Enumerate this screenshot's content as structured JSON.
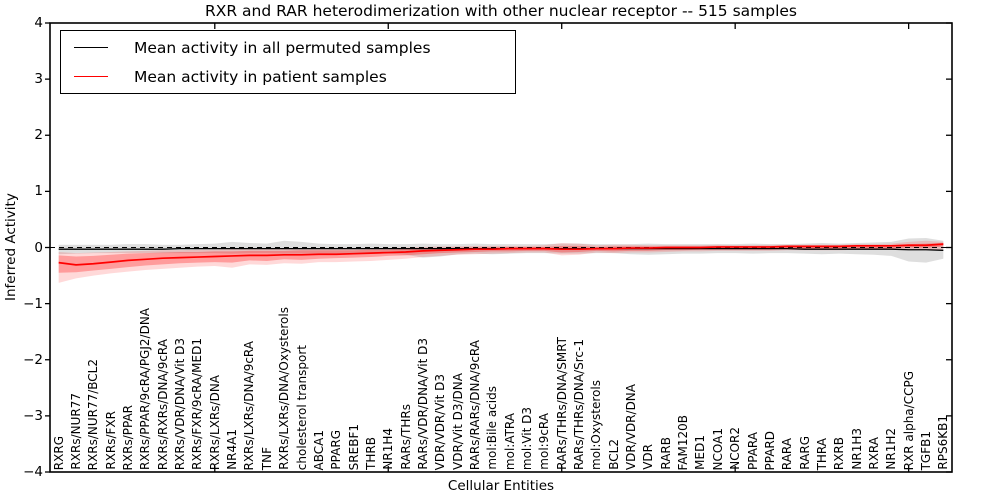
{
  "chart_data": {
    "type": "line",
    "title": "RXR and RAR heterodimerization with other nuclear receptor -- 515 samples",
    "xlabel": "Cellular Entities",
    "ylabel": "Inferred Activity",
    "ylim": [
      -4,
      4
    ],
    "yticks": [
      4,
      3,
      2,
      1,
      0,
      -1,
      -2,
      -3,
      -4
    ],
    "ytick_labels": [
      "4",
      "3",
      "2",
      "1",
      "0",
      "−1",
      "−2",
      "−3",
      "−4"
    ],
    "xtick_values": [
      10,
      20,
      30,
      40,
      50
    ],
    "grid": false,
    "legend_position": "upper left",
    "zero_line": {
      "style": "dashed",
      "color": "#000000",
      "y": 0
    },
    "categories": [
      "RXRG",
      "RXRs/NUR77",
      "RXRs/NUR77/BCL2",
      "RXRs/FXR",
      "RXRs/PPAR",
      "RXRs/PPAR/9cRA/PGJ2/DNA",
      "RXRs/RXRs/DNA/9cRA",
      "RXRs/VDR/DNA/Vit D3",
      "RXRs/FXR/9cRA/MED1",
      "RXRs/LXRs/DNA",
      "NR4A1",
      "RXRs/LXRs/DNA/9cRA",
      "TNF",
      "RXRs/LXRs/DNA/Oxysterols",
      "cholesterol transport",
      "ABCA1",
      "PPARG",
      "SREBF1",
      "THRB",
      "NR1H4",
      "RARs/THRs",
      "RARs/VDR/DNA/Vit D3",
      "VDR/VDR/Vit D3",
      "VDR/Vit D3/DNA",
      "RARs/RARs/DNA/9cRA",
      "mol:Bile acids",
      "mol:ATRA",
      "mol:Vit D3",
      "mol:9cRA",
      "RARs/THRs/DNA/SMRT",
      "RARs/THRs/DNA/Src-1",
      "mol:Oxysterols",
      "BCL2",
      "VDR/VDR/DNA",
      "VDR",
      "RARB",
      "FAM120B",
      "MED1",
      "NCOA1",
      "NCOR2",
      "PPARA",
      "PPARD",
      "RARA",
      "RARG",
      "THRA",
      "RXRB",
      "NR1H3",
      "RXRA",
      "NR1H2",
      "RXR alpha/CCPG",
      "TGFB1",
      "RPS6KB1"
    ],
    "series": [
      {
        "name": "Mean activity in all permuted samples",
        "color": "#000000",
        "linewidth": 1.3,
        "values": [
          -0.03,
          -0.03,
          -0.03,
          -0.03,
          -0.03,
          -0.03,
          -0.03,
          -0.02,
          -0.02,
          -0.02,
          -0.02,
          -0.02,
          -0.02,
          -0.02,
          -0.02,
          -0.02,
          -0.02,
          -0.02,
          -0.02,
          -0.02,
          -0.02,
          -0.02,
          -0.02,
          -0.02,
          -0.02,
          -0.02,
          -0.02,
          -0.02,
          -0.02,
          -0.02,
          -0.02,
          -0.02,
          -0.02,
          -0.02,
          -0.02,
          -0.02,
          -0.02,
          -0.02,
          -0.02,
          -0.02,
          -0.02,
          -0.02,
          -0.02,
          -0.03,
          -0.03,
          -0.03,
          -0.03,
          -0.03,
          -0.03,
          -0.04,
          -0.04,
          -0.05
        ]
      },
      {
        "name": "Mean activity in patient samples",
        "color": "#ff0000",
        "linewidth": 1.7,
        "values": [
          -0.27,
          -0.31,
          -0.29,
          -0.26,
          -0.23,
          -0.21,
          -0.19,
          -0.18,
          -0.17,
          -0.16,
          -0.15,
          -0.14,
          -0.14,
          -0.13,
          -0.13,
          -0.12,
          -0.12,
          -0.11,
          -0.1,
          -0.09,
          -0.08,
          -0.06,
          -0.05,
          -0.04,
          -0.03,
          -0.03,
          -0.02,
          -0.02,
          -0.02,
          -0.03,
          -0.03,
          -0.02,
          -0.02,
          -0.01,
          -0.01,
          0.0,
          0.0,
          0.0,
          0.01,
          0.01,
          0.01,
          0.01,
          0.02,
          0.02,
          0.02,
          0.02,
          0.03,
          0.03,
          0.03,
          0.04,
          0.04,
          0.06
        ]
      }
    ],
    "bands": [
      {
        "name": "permuted-std-band",
        "color": "#000000",
        "opacity": 0.13,
        "high": [
          0.05,
          0.05,
          0.05,
          0.05,
          0.06,
          0.06,
          0.05,
          0.05,
          0.06,
          0.07,
          0.1,
          0.08,
          0.07,
          0.12,
          0.1,
          0.07,
          0.06,
          0.06,
          0.07,
          0.06,
          0.06,
          0.07,
          0.06,
          0.06,
          0.07,
          0.06,
          0.06,
          0.06,
          0.06,
          0.07,
          0.07,
          0.06,
          0.06,
          0.06,
          0.07,
          0.06,
          0.06,
          0.06,
          0.06,
          0.06,
          0.07,
          0.06,
          0.06,
          0.07,
          0.08,
          0.07,
          0.08,
          0.09,
          0.1,
          0.16,
          0.17,
          0.12
        ],
        "low": [
          -0.12,
          -0.11,
          -0.1,
          -0.1,
          -0.1,
          -0.1,
          -0.1,
          -0.1,
          -0.1,
          -0.1,
          -0.11,
          -0.1,
          -0.1,
          -0.11,
          -0.11,
          -0.1,
          -0.1,
          -0.1,
          -0.1,
          -0.11,
          -0.13,
          -0.18,
          -0.16,
          -0.12,
          -0.11,
          -0.12,
          -0.11,
          -0.1,
          -0.1,
          -0.11,
          -0.11,
          -0.1,
          -0.1,
          -0.12,
          -0.13,
          -0.12,
          -0.11,
          -0.11,
          -0.1,
          -0.1,
          -0.11,
          -0.1,
          -0.1,
          -0.11,
          -0.12,
          -0.11,
          -0.12,
          -0.13,
          -0.15,
          -0.25,
          -0.27,
          -0.2
        ]
      },
      {
        "name": "patient-outer-band",
        "color": "#ff0000",
        "opacity": 0.15,
        "high": [
          -0.08,
          -0.1,
          -0.09,
          -0.08,
          -0.07,
          -0.06,
          -0.05,
          -0.05,
          -0.04,
          -0.04,
          -0.03,
          -0.03,
          -0.03,
          -0.02,
          -0.02,
          -0.02,
          -0.02,
          -0.02,
          -0.01,
          -0.01,
          0.0,
          0.01,
          0.02,
          0.02,
          0.03,
          0.03,
          0.03,
          0.03,
          0.04,
          0.08,
          0.07,
          0.04,
          0.05,
          0.05,
          0.04,
          0.04,
          0.04,
          0.04,
          0.05,
          0.04,
          0.04,
          0.05,
          0.05,
          0.05,
          0.05,
          0.05,
          0.06,
          0.06,
          0.07,
          0.1,
          0.12,
          0.1
        ],
        "low": [
          -0.63,
          -0.55,
          -0.5,
          -0.46,
          -0.43,
          -0.4,
          -0.38,
          -0.36,
          -0.34,
          -0.33,
          -0.36,
          -0.3,
          -0.31,
          -0.28,
          -0.29,
          -0.26,
          -0.26,
          -0.25,
          -0.24,
          -0.22,
          -0.2,
          -0.17,
          -0.15,
          -0.13,
          -0.12,
          -0.11,
          -0.1,
          -0.09,
          -0.09,
          -0.14,
          -0.13,
          -0.09,
          -0.1,
          -0.09,
          -0.09,
          -0.08,
          -0.07,
          -0.07,
          -0.06,
          -0.06,
          -0.06,
          -0.06,
          -0.05,
          -0.05,
          -0.05,
          -0.05,
          -0.04,
          -0.04,
          -0.04,
          -0.03,
          -0.05,
          -0.03
        ]
      },
      {
        "name": "patient-inner-band",
        "color": "#ff0000",
        "opacity": 0.28,
        "high": [
          -0.14,
          -0.16,
          -0.15,
          -0.13,
          -0.11,
          -0.1,
          -0.09,
          -0.08,
          -0.08,
          -0.07,
          -0.07,
          -0.06,
          -0.06,
          -0.06,
          -0.05,
          -0.05,
          -0.05,
          -0.05,
          -0.04,
          -0.04,
          -0.03,
          -0.02,
          -0.01,
          0.0,
          0.0,
          0.01,
          0.01,
          0.01,
          0.01,
          0.03,
          0.03,
          0.01,
          0.02,
          0.02,
          0.02,
          0.02,
          0.02,
          0.02,
          0.02,
          0.02,
          0.02,
          0.02,
          0.03,
          0.03,
          0.03,
          0.03,
          0.04,
          0.04,
          0.04,
          0.06,
          0.07,
          0.08
        ],
        "low": [
          -0.45,
          -0.44,
          -0.41,
          -0.38,
          -0.35,
          -0.32,
          -0.3,
          -0.28,
          -0.27,
          -0.26,
          -0.27,
          -0.23,
          -0.24,
          -0.21,
          -0.22,
          -0.2,
          -0.19,
          -0.18,
          -0.17,
          -0.15,
          -0.14,
          -0.12,
          -0.1,
          -0.09,
          -0.08,
          -0.07,
          -0.07,
          -0.06,
          -0.06,
          -0.09,
          -0.08,
          -0.06,
          -0.07,
          -0.06,
          -0.06,
          -0.05,
          -0.05,
          -0.04,
          -0.04,
          -0.04,
          -0.04,
          -0.04,
          -0.03,
          -0.03,
          -0.03,
          -0.03,
          -0.02,
          -0.02,
          -0.02,
          0.0,
          -0.01,
          0.02
        ]
      }
    ]
  }
}
